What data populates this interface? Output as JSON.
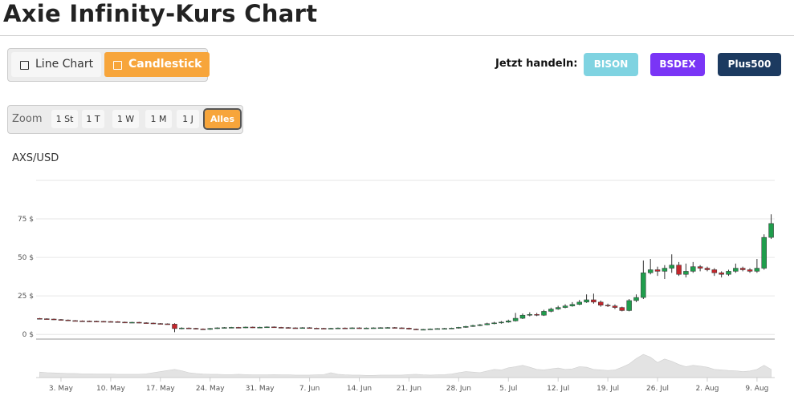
{
  "header": {
    "title": "Axie Infinity-Kurs Chart"
  },
  "chart_switch": {
    "options": [
      "Line Chart",
      "Candlestick"
    ],
    "active": 1
  },
  "trade": {
    "label": "Jetzt handeln:",
    "brokers": [
      "BISON",
      "BSDEX",
      "Plus500"
    ]
  },
  "zoom": {
    "label": "Zoom",
    "options": [
      "1 St",
      "1 T",
      "1 W",
      "1 M",
      "1 J",
      "Alles"
    ],
    "active": 5
  },
  "chart_data": {
    "type": "candlestick",
    "title": "AXS/USD",
    "open": [
      10.4,
      10.2,
      10,
      9.7,
      9.4,
      9,
      8.8,
      8.7,
      8.6,
      8.5,
      8.4,
      8.3,
      8,
      7.8,
      7.9,
      7.6,
      7.4,
      7.1,
      6.9,
      6.7,
      3.8,
      4.2,
      4,
      3.6,
      3.3,
      3.9,
      4.3,
      4.5,
      4.6,
      4.4,
      4.8,
      4.5,
      4.7,
      4.9,
      4.6,
      4.5,
      4.3,
      4.2,
      4.4,
      4.1,
      4.0,
      3.9,
      4.0,
      4.2,
      4.1,
      4.3,
      4.0,
      4.2,
      4.3,
      4.4,
      4.5,
      4.3,
      4.1,
      3.5,
      3.2,
      3.3,
      3.6,
      3.8,
      3.9,
      4.1,
      4.6,
      5.2,
      5.8,
      6.3,
      7.0,
      7.5,
      8.0,
      8.8,
      10.5,
      12.5,
      13,
      12.5,
      15,
      16.5,
      17.5,
      18.5,
      19.5,
      21,
      22.5,
      21,
      19,
      18.5,
      17.5,
      15.5,
      22,
      24,
      40,
      42,
      41,
      43,
      45,
      39,
      41,
      44,
      43,
      42,
      40,
      39,
      41,
      43,
      42,
      41,
      43,
      63
    ],
    "high": [
      10.7,
      10.5,
      10.3,
      10,
      9.7,
      9.3,
      9.1,
      9,
      8.9,
      8.8,
      8.7,
      8.6,
      8.3,
      8.2,
      8.2,
      7.9,
      7.7,
      7.4,
      7.2,
      7.3,
      4.6,
      4.5,
      4.3,
      3.9,
      4.2,
      4.6,
      4.8,
      4.9,
      4.9,
      5.1,
      5.1,
      5,
      5.2,
      5.2,
      4.9,
      4.8,
      4.6,
      4.7,
      4.7,
      4.4,
      4.3,
      4.3,
      4.5,
      4.5,
      4.6,
      4.6,
      4.5,
      4.6,
      4.7,
      4.8,
      4.8,
      4.6,
      4.4,
      3.8,
      3.6,
      3.9,
      4.1,
      4.2,
      4.4,
      4.9,
      5.6,
      6.3,
      6.8,
      7.6,
      8.2,
      8.7,
      9.6,
      14,
      13.6,
      14.4,
      14,
      16,
      17.4,
      18.6,
      19.6,
      21,
      22.4,
      26,
      26.5,
      22,
      20,
      19.5,
      18,
      23,
      26,
      48,
      49,
      44,
      45,
      52,
      47,
      46,
      47,
      45,
      44,
      43,
      41,
      42,
      46,
      44,
      43,
      49,
      65,
      78
    ],
    "low": [
      9.9,
      9.7,
      9.4,
      9.1,
      8.7,
      8.5,
      8.4,
      8.3,
      8.2,
      8.1,
      8,
      7.7,
      7.5,
      7.5,
      7.3,
      7.1,
      6.8,
      6.6,
      6.4,
      1.5,
      3.4,
      3.7,
      3.3,
      3,
      3,
      3.6,
      4,
      4.2,
      4.1,
      4.1,
      4.2,
      4.2,
      4.4,
      4.3,
      4.2,
      4,
      3.9,
      3.9,
      3.8,
      3.7,
      3.6,
      3.6,
      3.7,
      3.8,
      3.8,
      3.7,
      3.7,
      3.9,
      4,
      4.1,
      4,
      3.8,
      3.2,
      2.9,
      2.9,
      3,
      3.3,
      3.5,
      3.6,
      3.8,
      4.3,
      4.9,
      5.4,
      6,
      6.6,
      7,
      7.6,
      8.4,
      10,
      11.8,
      11.9,
      12,
      14.4,
      16,
      17,
      18,
      19,
      20.5,
      20,
      18,
      17.8,
      16.5,
      15,
      15,
      21,
      23,
      39,
      38,
      36,
      40,
      38,
      37,
      40,
      41,
      41,
      38,
      37,
      38,
      40,
      41,
      40,
      40,
      42,
      62
    ],
    "close": [
      10.2,
      10,
      9.7,
      9.4,
      9,
      8.8,
      8.7,
      8.6,
      8.5,
      8.4,
      8.3,
      8,
      7.8,
      7.9,
      7.6,
      7.4,
      7.1,
      6.9,
      6.7,
      3.8,
      4.2,
      4,
      3.6,
      3.3,
      3.9,
      4.3,
      4.5,
      4.6,
      4.4,
      4.8,
      4.5,
      4.7,
      4.9,
      4.6,
      4.5,
      4.3,
      4.2,
      4.4,
      4.1,
      4.0,
      3.9,
      4.0,
      4.2,
      4.1,
      4.3,
      4.0,
      4.2,
      4.3,
      4.4,
      4.5,
      4.3,
      4.1,
      3.5,
      3.2,
      3.3,
      3.6,
      3.8,
      3.9,
      4.1,
      4.6,
      5.2,
      5.8,
      6.3,
      7.0,
      7.5,
      8.0,
      8.8,
      10.5,
      12.5,
      13,
      12.5,
      15,
      16.5,
      17.5,
      18.5,
      19.5,
      21,
      22.5,
      21,
      19,
      18.5,
      17.5,
      15.5,
      22,
      24,
      40,
      42,
      41,
      43,
      45,
      39,
      41,
      44,
      43,
      42,
      40,
      39,
      41,
      43,
      42,
      41,
      43,
      63,
      72
    ],
    "volume": [
      20,
      18,
      17,
      16,
      15,
      15,
      14,
      14,
      13,
      13,
      13,
      12,
      12,
      12,
      12,
      14,
      18,
      22,
      26,
      30,
      25,
      18,
      15,
      13,
      12,
      12,
      11,
      11,
      12,
      11,
      10,
      10,
      10,
      11,
      10,
      10,
      9,
      9,
      9,
      10,
      11,
      18,
      12,
      10,
      9,
      9,
      8,
      8,
      9,
      9,
      9,
      9,
      11,
      12,
      10,
      9,
      10,
      11,
      13,
      18,
      22,
      20,
      18,
      24,
      30,
      28,
      36,
      40,
      45,
      38,
      30,
      28,
      32,
      35,
      30,
      32,
      40,
      38,
      30,
      28,
      26,
      28,
      38,
      50,
      70,
      85,
      75,
      55,
      68,
      60,
      48,
      40,
      45,
      42,
      38,
      30,
      28,
      26,
      25,
      22,
      24,
      30,
      45,
      30
    ],
    "up_color": "#1f9d4c",
    "down_color": "#c4262c",
    "volume_color": "#e3e3e3",
    "xlim": [
      -0.5,
      103.5
    ],
    "xticks": [
      {
        "value": 3,
        "label": "3. May"
      },
      {
        "value": 10,
        "label": "10. May"
      },
      {
        "value": 17,
        "label": "17. May"
      },
      {
        "value": 24,
        "label": "24. May"
      },
      {
        "value": 31,
        "label": "31. May"
      },
      {
        "value": 38,
        "label": "7. Jun"
      },
      {
        "value": 45,
        "label": "14. Jun"
      },
      {
        "value": 52,
        "label": "21. Jun"
      },
      {
        "value": 59,
        "label": "28. Jun"
      },
      {
        "value": 66,
        "label": "5. Jul"
      },
      {
        "value": 73,
        "label": "12. Jul"
      },
      {
        "value": 80,
        "label": "19. Jul"
      },
      {
        "value": 87,
        "label": "26. Jul"
      },
      {
        "value": 94,
        "label": "2. Aug"
      },
      {
        "value": 101,
        "label": "9. Aug"
      }
    ],
    "ylim": [
      -3,
      100
    ],
    "yticks": [
      {
        "value": 0,
        "label": "0 $"
      },
      {
        "value": 25,
        "label": "25 $"
      },
      {
        "value": 50,
        "label": "50 $"
      },
      {
        "value": 75,
        "label": "75 $"
      }
    ],
    "vlim": [
      0,
      100
    ],
    "grid": true
  }
}
